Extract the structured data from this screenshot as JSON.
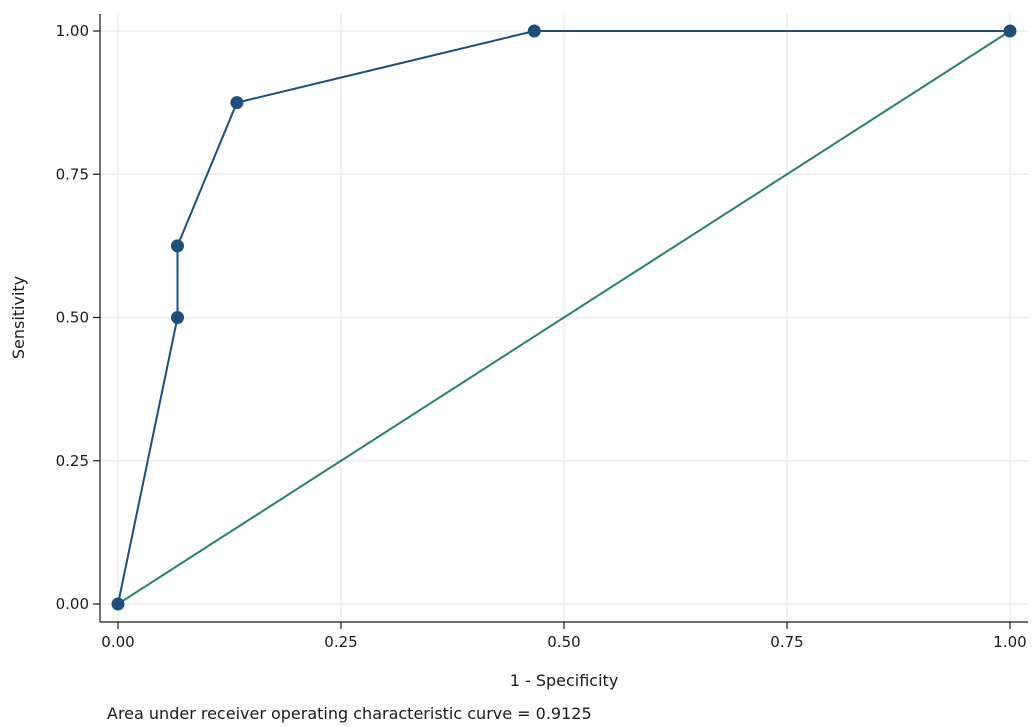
{
  "chart_data": {
    "type": "line",
    "xlabel": "1 - Specificity",
    "ylabel": "Sensitivity",
    "xlim": [
      0,
      1
    ],
    "ylim": [
      0,
      1
    ],
    "x_ticks": [
      "0.00",
      "0.25",
      "0.50",
      "0.75",
      "1.00"
    ],
    "y_ticks": [
      "0.00",
      "0.25",
      "0.50",
      "0.75",
      "1.00"
    ],
    "grid": true,
    "series": [
      {
        "points": [
          {
            "x": 0.0,
            "y": 0.0
          },
          {
            "x": 0.0667,
            "y": 0.5
          },
          {
            "x": 0.0667,
            "y": 0.625
          },
          {
            "x": 0.1333,
            "y": 0.875
          },
          {
            "x": 0.4667,
            "y": 1.0
          },
          {
            "x": 1.0,
            "y": 1.0
          }
        ],
        "color": "#1f4e79",
        "markers": true
      },
      {
        "points": [
          {
            "x": 0.0,
            "y": 0.0
          },
          {
            "x": 1.0,
            "y": 1.0
          }
        ],
        "color": "#2e7d6e",
        "markers": false
      }
    ],
    "note": "Area under receiver operating characteristic curve = 0.9125"
  }
}
